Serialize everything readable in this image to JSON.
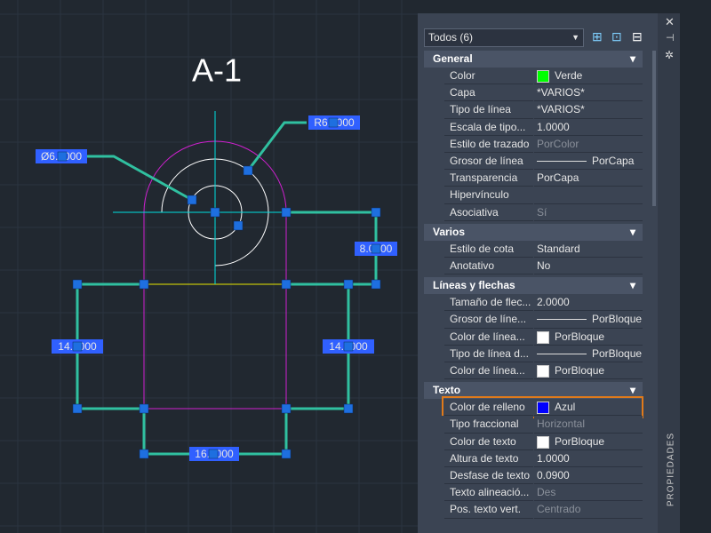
{
  "drawing": {
    "title": "A-1",
    "dimensions": {
      "radius": "R6.0000",
      "diameter": "Ø6.0000",
      "right_top": "8.0000",
      "left": "14.0000",
      "right": "14.0000",
      "bottom": "16.0000"
    }
  },
  "panel": {
    "selector": "Todos (6)",
    "tab": "PROPIEDADES",
    "sections": [
      {
        "title": "General",
        "rows": [
          {
            "label": "Color",
            "value": "Verde",
            "swatch": "#00ff00"
          },
          {
            "label": "Capa",
            "value": "*VARIOS*"
          },
          {
            "label": "Tipo de línea",
            "value": "*VARIOS*"
          },
          {
            "label": "Escala de tipo...",
            "value": "1.0000"
          },
          {
            "label": "Estilo de trazado",
            "value": "PorColor"
          },
          {
            "label": "Grosor de línea",
            "value": "PorCapa"
          },
          {
            "label": "Transparencia",
            "value": "PorCapa"
          },
          {
            "label": "Hipervínculo"
          },
          {
            "label": "Asociativa",
            "value": "Sí"
          }
        ]
      },
      {
        "title": "Varios",
        "rows": [
          {
            "label": "Estilo de cota",
            "value": "Standard"
          },
          {
            "label": "Anotativo",
            "value": "No"
          }
        ]
      },
      {
        "title": "Líneas y flechas",
        "rows": [
          {
            "label": "Tamaño de flec...",
            "value": "2.0000"
          },
          {
            "label": "Grosor de líne...",
            "value": "PorBloque"
          },
          {
            "label": "Color de línea...",
            "value": "PorBloque",
            "swatch": "#ffffff"
          },
          {
            "label": "Tipo de línea d...",
            "value": "PorBloque"
          },
          {
            "label": "Color de línea...",
            "value": "PorBloque",
            "swatch": "#ffffff"
          }
        ]
      },
      {
        "title": "Texto",
        "rows": [
          {
            "label": "Color de relleno",
            "value": "Azul",
            "swatch": "#0000ff"
          },
          {
            "label": "Tipo fraccional",
            "value": "Horizontal"
          },
          {
            "label": "Color de texto",
            "value": "PorBloque",
            "swatch": "#ffffff"
          },
          {
            "label": "Altura de texto",
            "value": "1.0000"
          },
          {
            "label": "Desfase de texto",
            "value": "0.0900"
          },
          {
            "label": "Texto alineació...",
            "value": "Des"
          },
          {
            "label": "Pos. texto vert.",
            "value": "Centrado"
          }
        ]
      }
    ]
  }
}
